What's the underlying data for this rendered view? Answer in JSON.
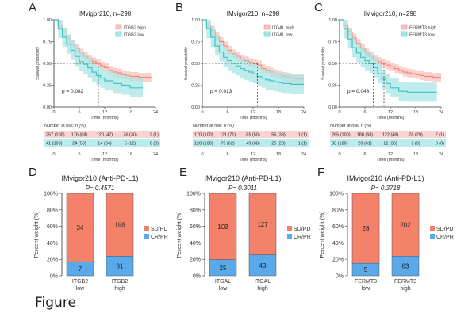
{
  "caption": "Figure",
  "km_panels": [
    {
      "letter": "A",
      "title": "IMvigor210, n=298",
      "ylabel": "Survival probability",
      "xlabel": "Time (months)",
      "x_ticks": [
        "0",
        "6",
        "12",
        "18",
        "24"
      ],
      "y_ticks": [
        "0.00",
        "0.25",
        "0.50",
        "0.75",
        "1.00"
      ],
      "xlim": [
        0,
        24
      ],
      "ylim": [
        0,
        1
      ],
      "p_value": "p = 0.082",
      "legend": [
        "ITGB2 high",
        "ITGB2 low"
      ],
      "median_high": 10.5,
      "median_low": 8.5,
      "series": [
        {
          "name": "ITGB2 high",
          "color": "#f08a80",
          "band": "#f8c1bb",
          "x": [
            0,
            1,
            2,
            3,
            4,
            5,
            6,
            7,
            8,
            9,
            10,
            11,
            12,
            13,
            14,
            15,
            16,
            17,
            18,
            19,
            20,
            21,
            22
          ],
          "y": [
            1.0,
            0.93,
            0.86,
            0.78,
            0.72,
            0.67,
            0.62,
            0.58,
            0.55,
            0.52,
            0.5,
            0.47,
            0.45,
            0.42,
            0.4,
            0.39,
            0.37,
            0.36,
            0.35,
            0.35,
            0.34,
            0.34,
            0.34
          ]
        },
        {
          "name": "ITGB2 low",
          "color": "#40c4c4",
          "band": "#a8e6e6",
          "x": [
            0,
            1,
            2,
            3,
            4,
            5,
            6,
            7,
            8,
            9,
            10,
            11,
            12,
            14,
            16,
            18,
            20
          ],
          "y": [
            1.0,
            0.9,
            0.8,
            0.72,
            0.65,
            0.58,
            0.52,
            0.49,
            0.45,
            0.4,
            0.36,
            0.33,
            0.3,
            0.27,
            0.25,
            0.22,
            0.22
          ]
        }
      ],
      "risk_header": "Number at risk: n (%)",
      "risk_rows": [
        [
          "257 (100)",
          "176 (68)",
          "120 (47)",
          "76 (30)",
          "2 (1)"
        ],
        [
          "41 (100)",
          "24 (59)",
          "14 (34)",
          "5 (12)",
          "0 (0)"
        ]
      ]
    },
    {
      "letter": "B",
      "title": "IMvigor210, n=298",
      "ylabel": "Survival probability",
      "xlabel": "Time (months)",
      "x_ticks": [
        "0",
        "6",
        "12",
        "18",
        "24"
      ],
      "y_ticks": [
        "0.00",
        "0.25",
        "0.50",
        "0.75",
        "1.00"
      ],
      "xlim": [
        0,
        24
      ],
      "ylim": [
        0,
        1
      ],
      "p_value": "p = 0.013",
      "legend": [
        "ITGAL high",
        "ITGAL low"
      ],
      "median_high": 13.0,
      "median_low": 8.0,
      "series": [
        {
          "name": "ITGAL high",
          "color": "#f08a80",
          "band": "#f8c1bb",
          "x": [
            0,
            1,
            2,
            3,
            4,
            5,
            6,
            7,
            8,
            9,
            10,
            11,
            12,
            13,
            14,
            15,
            16,
            17,
            18,
            19,
            20,
            21,
            22,
            23
          ],
          "y": [
            1.0,
            0.94,
            0.88,
            0.81,
            0.75,
            0.7,
            0.65,
            0.61,
            0.58,
            0.55,
            0.53,
            0.51,
            0.5,
            0.48,
            0.44,
            0.42,
            0.4,
            0.38,
            0.37,
            0.35,
            0.34,
            0.33,
            0.32,
            0.32
          ]
        },
        {
          "name": "ITGAL low",
          "color": "#40c4c4",
          "band": "#a8e6e6",
          "x": [
            0,
            1,
            2,
            3,
            4,
            5,
            6,
            7,
            8,
            9,
            10,
            11,
            12,
            13,
            14,
            15,
            16,
            17,
            18,
            19,
            20,
            21,
            22,
            23
          ],
          "y": [
            1.0,
            0.9,
            0.8,
            0.7,
            0.63,
            0.57,
            0.53,
            0.5,
            0.47,
            0.44,
            0.42,
            0.4,
            0.38,
            0.35,
            0.33,
            0.31,
            0.3,
            0.29,
            0.28,
            0.27,
            0.27,
            0.26,
            0.26,
            0.26
          ]
        }
      ],
      "risk_header": "Number at risk: n (%)",
      "risk_rows": [
        [
          "170 (100)",
          "121 (71)",
          "85 (50)",
          "56 (33)",
          "1 (1)"
        ],
        [
          "128 (100)",
          "79 (62)",
          "49 (38)",
          "25 (20)",
          "1 (1)"
        ]
      ]
    },
    {
      "letter": "C",
      "title": "IMvigor210, n=298",
      "ylabel": "Survival probability",
      "xlabel": "Time (months)",
      "x_ticks": [
        "0",
        "6",
        "12",
        "18",
        "24"
      ],
      "y_ticks": [
        "0.00",
        "0.25",
        "0.50",
        "0.75",
        "1.00"
      ],
      "xlim": [
        0,
        24
      ],
      "ylim": [
        0,
        1
      ],
      "p_value": "p = 0.043",
      "legend": [
        "FERMT3 high",
        "FERMT3 low"
      ],
      "median_high": 10.5,
      "median_low": 8.0,
      "series": [
        {
          "name": "FERMT3 high",
          "color": "#f08a80",
          "band": "#f8c1bb",
          "x": [
            0,
            1,
            2,
            3,
            4,
            5,
            6,
            7,
            8,
            9,
            10,
            11,
            12,
            13,
            14,
            15,
            16,
            17,
            18,
            19,
            20,
            21,
            22,
            23
          ],
          "y": [
            1.0,
            0.93,
            0.86,
            0.79,
            0.73,
            0.67,
            0.62,
            0.58,
            0.55,
            0.52,
            0.5,
            0.48,
            0.46,
            0.44,
            0.42,
            0.4,
            0.39,
            0.38,
            0.37,
            0.36,
            0.35,
            0.35,
            0.34,
            0.34
          ]
        },
        {
          "name": "FERMT3 low",
          "color": "#40c4c4",
          "band": "#a8e6e6",
          "x": [
            0,
            1,
            2,
            3,
            4,
            5,
            6,
            7,
            8,
            9,
            10,
            11,
            12,
            14,
            16,
            18,
            20,
            22
          ],
          "y": [
            1.0,
            0.9,
            0.78,
            0.68,
            0.62,
            0.57,
            0.53,
            0.5,
            0.45,
            0.38,
            0.32,
            0.27,
            0.22,
            0.18,
            0.17,
            0.17,
            0.17,
            0.17
          ]
        }
      ],
      "risk_header": "Number at risk: n (%)",
      "risk_rows": [
        [
          "265 (100)",
          "180 (68)",
          "122 (46)",
          "78 (29)",
          "2 (1)"
        ],
        [
          "33 (100)",
          "20 (61)",
          "12 (36)",
          "3 (9)",
          "0 (0)"
        ]
      ]
    }
  ],
  "bar_panels": [
    {
      "letter": "D",
      "title": "IMvigor210 (Anti-PD-L1)",
      "p_value": "P= 0.4571",
      "ylabel": "Percent weight (%)",
      "y_ticks": [
        "0%",
        "20%",
        "40%",
        "60%",
        "80%",
        "100%"
      ],
      "categories": [
        [
          "ITGB2",
          "low"
        ],
        [
          "ITGB2",
          "high"
        ]
      ],
      "cr_pr": [
        7,
        61
      ],
      "sd_pd": [
        34,
        196
      ],
      "legend": [
        "SD/PD",
        "CR/PR"
      ]
    },
    {
      "letter": "E",
      "title": "IMvigor210 (Anti-PD-L1)",
      "p_value": "P= 0.3011",
      "ylabel": "Percent weight (%)",
      "y_ticks": [
        "0%",
        "20%",
        "40%",
        "60%",
        "80%",
        "100%"
      ],
      "categories": [
        [
          "ITGAL",
          "low"
        ],
        [
          "ITGAL",
          "high"
        ]
      ],
      "cr_pr": [
        25,
        43
      ],
      "sd_pd": [
        103,
        127
      ],
      "legend": [
        "SD/PD",
        "CR/PR"
      ]
    },
    {
      "letter": "F",
      "title": "IMvigor210 (Anti-PD-L1)",
      "p_value": "P= 0.3718",
      "ylabel": "Percent weight (%)",
      "y_ticks": [
        "0%",
        "20%",
        "40%",
        "60%",
        "80%",
        "100%"
      ],
      "categories": [
        [
          "FERMT3",
          "low"
        ],
        [
          "FERMT3",
          "high"
        ]
      ],
      "cr_pr": [
        5,
        63
      ],
      "sd_pd": [
        28,
        202
      ],
      "legend": [
        "SD/PD",
        "CR/PR"
      ]
    }
  ],
  "chart_data": [
    {
      "type": "line",
      "title": "A: IMvigor210, n=298",
      "xlabel": "Time (months)",
      "ylabel": "Survival probability",
      "xlim": [
        0,
        24
      ],
      "ylim": [
        0,
        1
      ],
      "series": [
        {
          "name": "ITGB2 high"
        },
        {
          "name": "ITGB2 low"
        }
      ],
      "p_value": "p = 0.082"
    },
    {
      "type": "line",
      "title": "B: IMvigor210, n=298",
      "xlabel": "Time (months)",
      "ylabel": "Survival probability",
      "xlim": [
        0,
        24
      ],
      "ylim": [
        0,
        1
      ],
      "series": [
        {
          "name": "ITGAL high"
        },
        {
          "name": "ITGAL low"
        }
      ],
      "p_value": "p = 0.013"
    },
    {
      "type": "line",
      "title": "C: IMvigor210, n=298",
      "xlabel": "Time (months)",
      "ylabel": "Survival probability",
      "xlim": [
        0,
        24
      ],
      "ylim": [
        0,
        1
      ],
      "series": [
        {
          "name": "FERMT3 high"
        },
        {
          "name": "FERMT3 low"
        }
      ],
      "p_value": "p = 0.043"
    },
    {
      "type": "bar",
      "title": "D: IMvigor210 (Anti-PD-L1)",
      "categories": [
        "ITGB2 low",
        "ITGB2 high"
      ],
      "series": [
        {
          "name": "CR/PR",
          "values": [
            7,
            61
          ]
        },
        {
          "name": "SD/PD",
          "values": [
            34,
            196
          ]
        }
      ],
      "ylabel": "Percent weight (%)"
    },
    {
      "type": "bar",
      "title": "E: IMvigor210 (Anti-PD-L1)",
      "categories": [
        "ITGAL low",
        "ITGAL high"
      ],
      "series": [
        {
          "name": "CR/PR",
          "values": [
            25,
            43
          ]
        },
        {
          "name": "SD/PD",
          "values": [
            103,
            127
          ]
        }
      ],
      "ylabel": "Percent weight (%)"
    },
    {
      "type": "bar",
      "title": "F: IMvigor210 (Anti-PD-L1)",
      "categories": [
        "FERMT3 low",
        "FERMT3 high"
      ],
      "series": [
        {
          "name": "CR/PR",
          "values": [
            5,
            63
          ]
        },
        {
          "name": "SD/PD",
          "values": [
            28,
            202
          ]
        }
      ],
      "ylabel": "Percent weight (%)"
    }
  ],
  "colors": {
    "high": "#f08a80",
    "low": "#40c4c4",
    "sdpd": "#f4826b",
    "crpr": "#5aa9ea",
    "risk_high_bg": "#f9d3cf",
    "risk_low_bg": "#b9ecec"
  }
}
